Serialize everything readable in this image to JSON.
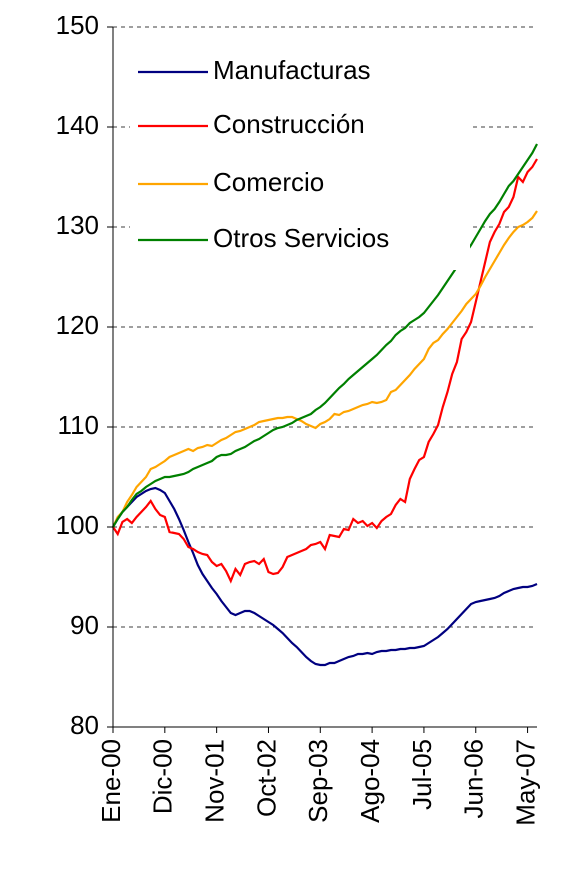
{
  "chart_data": {
    "type": "line",
    "categories": [
      "Ene-00",
      null,
      null,
      null,
      null,
      null,
      null,
      null,
      null,
      null,
      null,
      "Dic-00",
      null,
      null,
      null,
      null,
      null,
      null,
      null,
      null,
      null,
      null,
      "Nov-01",
      null,
      null,
      null,
      null,
      null,
      null,
      null,
      null,
      null,
      null,
      "Oct-02",
      null,
      null,
      null,
      null,
      null,
      null,
      null,
      null,
      null,
      null,
      "Sep-03",
      null,
      null,
      null,
      null,
      null,
      null,
      null,
      null,
      null,
      null,
      "Ago-04",
      null,
      null,
      null,
      null,
      null,
      null,
      null,
      null,
      null,
      null,
      "Jul-05",
      null,
      null,
      null,
      null,
      null,
      null,
      null,
      null,
      null,
      null,
      "Jun-06",
      null,
      null,
      null,
      null,
      null,
      null,
      null,
      null,
      null,
      null,
      "May-07",
      null,
      null
    ],
    "series": [
      {
        "name": "Manufacturas",
        "color": "#000080",
        "values": [
          100,
          100.8,
          101.5,
          102,
          102.5,
          103,
          103.3,
          103.6,
          103.8,
          103.9,
          103.7,
          103.4,
          102.6,
          101.8,
          100.8,
          99.7,
          98.5,
          97.4,
          96.2,
          95.3,
          94.6,
          93.9,
          93.3,
          92.6,
          92,
          91.4,
          91.2,
          91.4,
          91.6,
          91.6,
          91.4,
          91.1,
          90.8,
          90.5,
          90.2,
          89.8,
          89.4,
          88.9,
          88.4,
          88,
          87.5,
          87,
          86.6,
          86.3,
          86.2,
          86.2,
          86.4,
          86.4,
          86.6,
          86.8,
          87,
          87.1,
          87.3,
          87.3,
          87.4,
          87.3,
          87.5,
          87.6,
          87.6,
          87.7,
          87.7,
          87.8,
          87.8,
          87.9,
          87.9,
          88,
          88.1,
          88.4,
          88.7,
          89,
          89.4,
          89.8,
          90.3,
          90.8,
          91.3,
          91.8,
          92.3,
          92.5,
          92.6,
          92.7,
          92.8,
          92.9,
          93.1,
          93.4,
          93.6,
          93.8,
          93.9,
          94,
          94,
          94.1,
          94.3
        ]
      },
      {
        "name": "Construcción",
        "color": "#ff0000",
        "values": [
          100,
          99.3,
          100.5,
          100.8,
          100.4,
          101,
          101.5,
          102,
          102.6,
          101.8,
          101.2,
          101,
          99.5,
          99.4,
          99.3,
          98.8,
          98,
          97.8,
          97.5,
          97.3,
          97.2,
          96.5,
          96.1,
          96.3,
          95.6,
          94.6,
          95.8,
          95.2,
          96.3,
          96.5,
          96.6,
          96.3,
          96.8,
          95.5,
          95.3,
          95.4,
          96,
          97,
          97.2,
          97.4,
          97.6,
          97.8,
          98.2,
          98.3,
          98.5,
          97.8,
          99.2,
          99.1,
          99,
          99.8,
          99.7,
          100.8,
          100.4,
          100.6,
          100.1,
          100.4,
          99.9,
          100.6,
          101,
          101.3,
          102.2,
          102.8,
          102.5,
          104.8,
          105.8,
          106.7,
          107,
          108.5,
          109.3,
          110.2,
          112,
          113.5,
          115.3,
          116.5,
          118.8,
          119.5,
          120.5,
          122.5,
          124.5,
          126.5,
          128.5,
          129.5,
          130.3,
          131.5,
          132,
          133,
          135,
          134.5,
          135.5,
          136,
          136.8
        ]
      },
      {
        "name": "Comercio",
        "color": "#ffa500",
        "values": [
          100,
          101,
          101.5,
          102.5,
          103.2,
          104,
          104.5,
          105,
          105.8,
          106,
          106.3,
          106.6,
          107,
          107.2,
          107.4,
          107.6,
          107.8,
          107.6,
          107.9,
          108,
          108.2,
          108.1,
          108.4,
          108.7,
          108.9,
          109.2,
          109.5,
          109.6,
          109.8,
          110,
          110.2,
          110.5,
          110.6,
          110.7,
          110.8,
          110.9,
          110.9,
          111,
          111,
          110.8,
          110.6,
          110.3,
          110.1,
          109.9,
          110.3,
          110.5,
          110.8,
          111.3,
          111.2,
          111.5,
          111.6,
          111.8,
          112,
          112.2,
          112.3,
          112.5,
          112.4,
          112.5,
          112.7,
          113.5,
          113.7,
          114.2,
          114.7,
          115.2,
          115.8,
          116.3,
          116.8,
          117.8,
          118.4,
          118.7,
          119.3,
          119.8,
          120.4,
          121,
          121.6,
          122.3,
          122.8,
          123.3,
          124.1,
          125,
          125.8,
          126.6,
          127.4,
          128.2,
          128.9,
          129.5,
          130,
          130.2,
          130.5,
          130.9,
          131.6
        ]
      },
      {
        "name": "Otros Servicios",
        "color": "#008000",
        "values": [
          100,
          100.8,
          101.5,
          102,
          102.7,
          103.3,
          103.6,
          104,
          104.3,
          104.6,
          104.8,
          105,
          105,
          105.1,
          105.2,
          105.3,
          105.5,
          105.8,
          106,
          106.2,
          106.4,
          106.6,
          107,
          107.2,
          107.2,
          107.3,
          107.6,
          107.8,
          108,
          108.3,
          108.6,
          108.8,
          109.1,
          109.4,
          109.7,
          109.9,
          110,
          110.2,
          110.4,
          110.7,
          110.9,
          111.1,
          111.3,
          111.7,
          112,
          112.4,
          112.9,
          113.4,
          113.9,
          114.3,
          114.8,
          115.2,
          115.6,
          116,
          116.4,
          116.8,
          117.2,
          117.7,
          118.2,
          118.6,
          119.2,
          119.6,
          119.9,
          120.4,
          120.7,
          121,
          121.4,
          122,
          122.6,
          123.2,
          123.9,
          124.6,
          125.3,
          126,
          126.8,
          127.5,
          128.2,
          129,
          129.8,
          130.6,
          131.3,
          131.8,
          132.5,
          133.3,
          134.1,
          134.6,
          135.3,
          136,
          136.7,
          137.4,
          138.3
        ]
      }
    ],
    "ylim": [
      80,
      150
    ],
    "yticks": [
      80,
      90,
      100,
      110,
      120,
      130,
      140,
      150
    ],
    "grid": true,
    "legend": "upper left"
  }
}
